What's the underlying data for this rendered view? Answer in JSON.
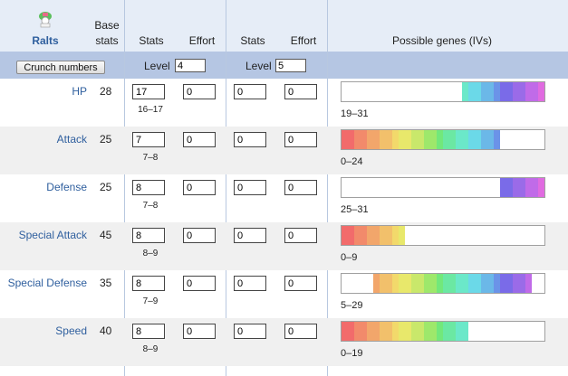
{
  "pokemon": {
    "name": "Ralts",
    "icon": "ralts-sprite-icon"
  },
  "header": {
    "base_label_line1": "Base",
    "base_label_line2": "stats",
    "stats1": "Stats",
    "effort1": "Effort",
    "stats2": "Stats",
    "effort2": "Effort",
    "genes": "Possible genes (IVs)"
  },
  "controls": {
    "crunch": "Crunch numbers",
    "level1_label": "Level",
    "level1": "4",
    "level2_label": "Level",
    "level2": "5"
  },
  "iv_max": 31,
  "iv_palette": [
    "#f26b6b",
    "#f28a6b",
    "#f2a66b",
    "#f2c06b",
    "#f2d96b",
    "#e8e86b",
    "#c9e86b",
    "#9ee86b",
    "#72e87b",
    "#6be8a3",
    "#6be8c9",
    "#6bd9e8",
    "#6bb8e8",
    "#6b93e8",
    "#7a6be8",
    "#9a6be8",
    "#c06be8",
    "#e06be0"
  ],
  "stats": [
    {
      "name": "HP",
      "base": "28",
      "stat1": "17",
      "effort1": "0",
      "stat2": "0",
      "effort2": "0",
      "range": "16–17",
      "iv_text": "19–31",
      "iv_min": 19,
      "iv_max": 31
    },
    {
      "name": "Attack",
      "base": "25",
      "stat1": "7",
      "effort1": "0",
      "stat2": "0",
      "effort2": "0",
      "range": "7–8",
      "iv_text": "0–24",
      "iv_min": 0,
      "iv_max": 24
    },
    {
      "name": "Defense",
      "base": "25",
      "stat1": "8",
      "effort1": "0",
      "stat2": "0",
      "effort2": "0",
      "range": "7–8",
      "iv_text": "25–31",
      "iv_min": 25,
      "iv_max": 31
    },
    {
      "name": "Special Attack",
      "base": "45",
      "stat1": "8",
      "effort1": "0",
      "stat2": "0",
      "effort2": "0",
      "range": "8–9",
      "iv_text": "0–9",
      "iv_min": 0,
      "iv_max": 9
    },
    {
      "name": "Special Defense",
      "base": "35",
      "stat1": "8",
      "effort1": "0",
      "stat2": "0",
      "effort2": "0",
      "range": "7–9",
      "iv_text": "5–29",
      "iv_min": 5,
      "iv_max": 29
    },
    {
      "name": "Speed",
      "base": "40",
      "stat1": "8",
      "effort1": "0",
      "stat2": "0",
      "effort2": "0",
      "range": "8–9",
      "iv_text": "0–19",
      "iv_min": 0,
      "iv_max": 19
    }
  ]
}
